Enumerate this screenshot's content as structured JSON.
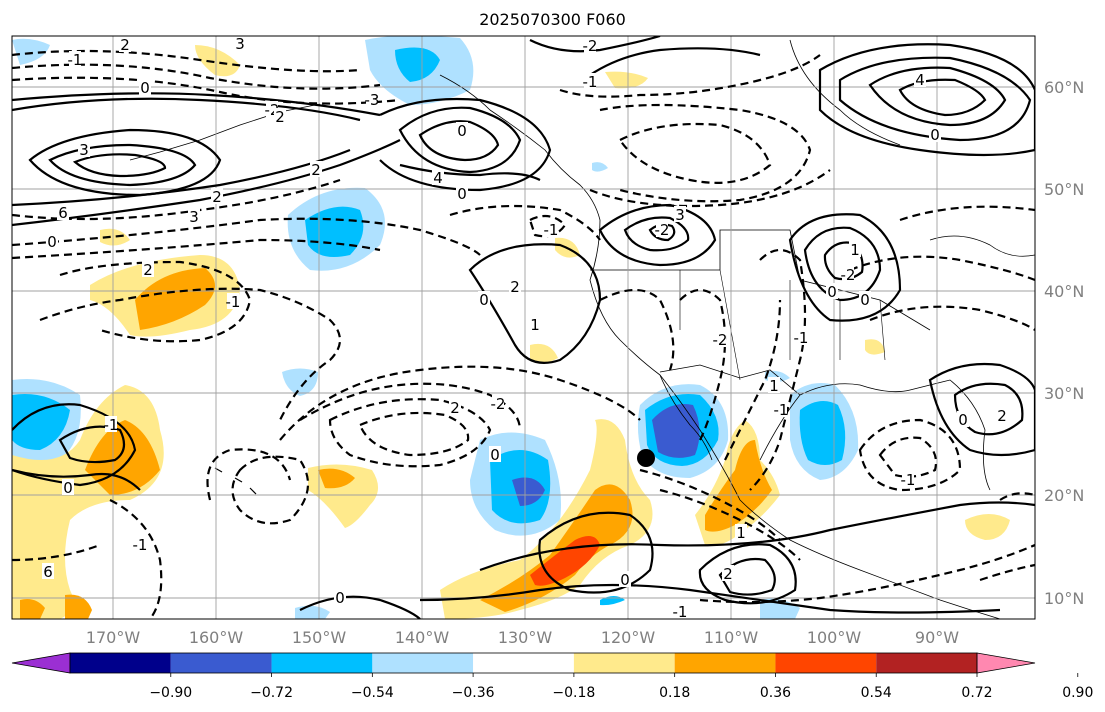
{
  "title": "2025070300 F060",
  "map": {
    "lon_labels": [
      "170°W",
      "160°W",
      "150°W",
      "140°W",
      "130°W",
      "120°W",
      "110°W",
      "100°W",
      "90°W"
    ],
    "lat_labels": [
      "60°N",
      "50°N",
      "40°N",
      "30°N",
      "20°N",
      "10°N"
    ],
    "marker": {
      "label": "storm-center-dot"
    }
  },
  "contour_labels": [
    "3",
    "-1",
    "2",
    "-2",
    "0",
    "-3",
    "0",
    "3",
    "6",
    "4",
    "0",
    "2",
    "3",
    "-2",
    "2",
    "-1",
    "2",
    "3",
    "-1",
    "-2",
    "0",
    "2",
    "-1",
    "2",
    "1",
    "0",
    "-2",
    "1",
    "-2",
    "0",
    "0",
    "-1",
    "1",
    "0",
    "2",
    "-1",
    "0",
    "-2",
    "-1",
    "2",
    "1",
    "0",
    "2",
    "0",
    "-1",
    "-1",
    "-1",
    "0",
    "6",
    "4",
    "0"
  ],
  "colorbar": {
    "ticks": [
      "−0.90",
      "−0.72",
      "−0.54",
      "−0.36",
      "−0.18",
      "0.18",
      "0.36",
      "0.54",
      "0.72",
      "0.90"
    ],
    "colors": [
      "#9b2fd3",
      "#00008b",
      "#3a5bd0",
      "#00bfff",
      "#afe1ff",
      "#ffffff",
      "#ffea8c",
      "#ffa500",
      "#ff4500",
      "#b22222",
      "#ff88b0"
    ]
  },
  "colors": {
    "neg1": "#afe1ff",
    "neg2": "#00bfff",
    "neg3": "#3a5bd0",
    "pos1": "#ffea8c",
    "pos2": "#ffa500",
    "pos3": "#ff4500"
  }
}
